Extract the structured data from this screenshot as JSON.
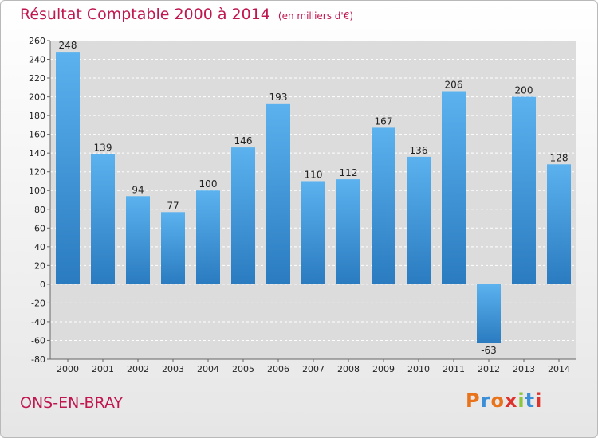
{
  "header": {
    "title": "Résultat Comptable 2000 à 2014",
    "subtitle": "(en milliers d'€)"
  },
  "footer": {
    "place": "ONS-EN-BRAY",
    "logo": [
      "P",
      "r",
      "o",
      "x",
      "i",
      "t",
      "i"
    ],
    "logo_colors": [
      "#e8731a",
      "#3a8fd8",
      "#e8731a",
      "#e0322d",
      "#8cc63f",
      "#3a8fd8",
      "#e0322d"
    ]
  },
  "colors": {
    "bar_top": "#5bb2ee",
    "bar_bottom": "#2a7bc0",
    "title": "#c0174f"
  },
  "chart_data": {
    "type": "bar",
    "title": "Résultat Comptable 2000 à 2014",
    "ylabel": "en milliers d'€",
    "categories": [
      "2000",
      "2001",
      "2002",
      "2003",
      "2004",
      "2005",
      "2006",
      "2007",
      "2008",
      "2009",
      "2010",
      "2011",
      "2012",
      "2013",
      "2014"
    ],
    "values": [
      248,
      139,
      94,
      77,
      100,
      146,
      193,
      110,
      112,
      167,
      136,
      206,
      -63,
      200,
      128
    ],
    "ylim": [
      -80,
      260
    ],
    "yticks": [
      260,
      240,
      220,
      200,
      180,
      160,
      140,
      120,
      100,
      80,
      60,
      40,
      20,
      0,
      -20,
      -40,
      -60,
      -80
    ],
    "grid": true
  }
}
